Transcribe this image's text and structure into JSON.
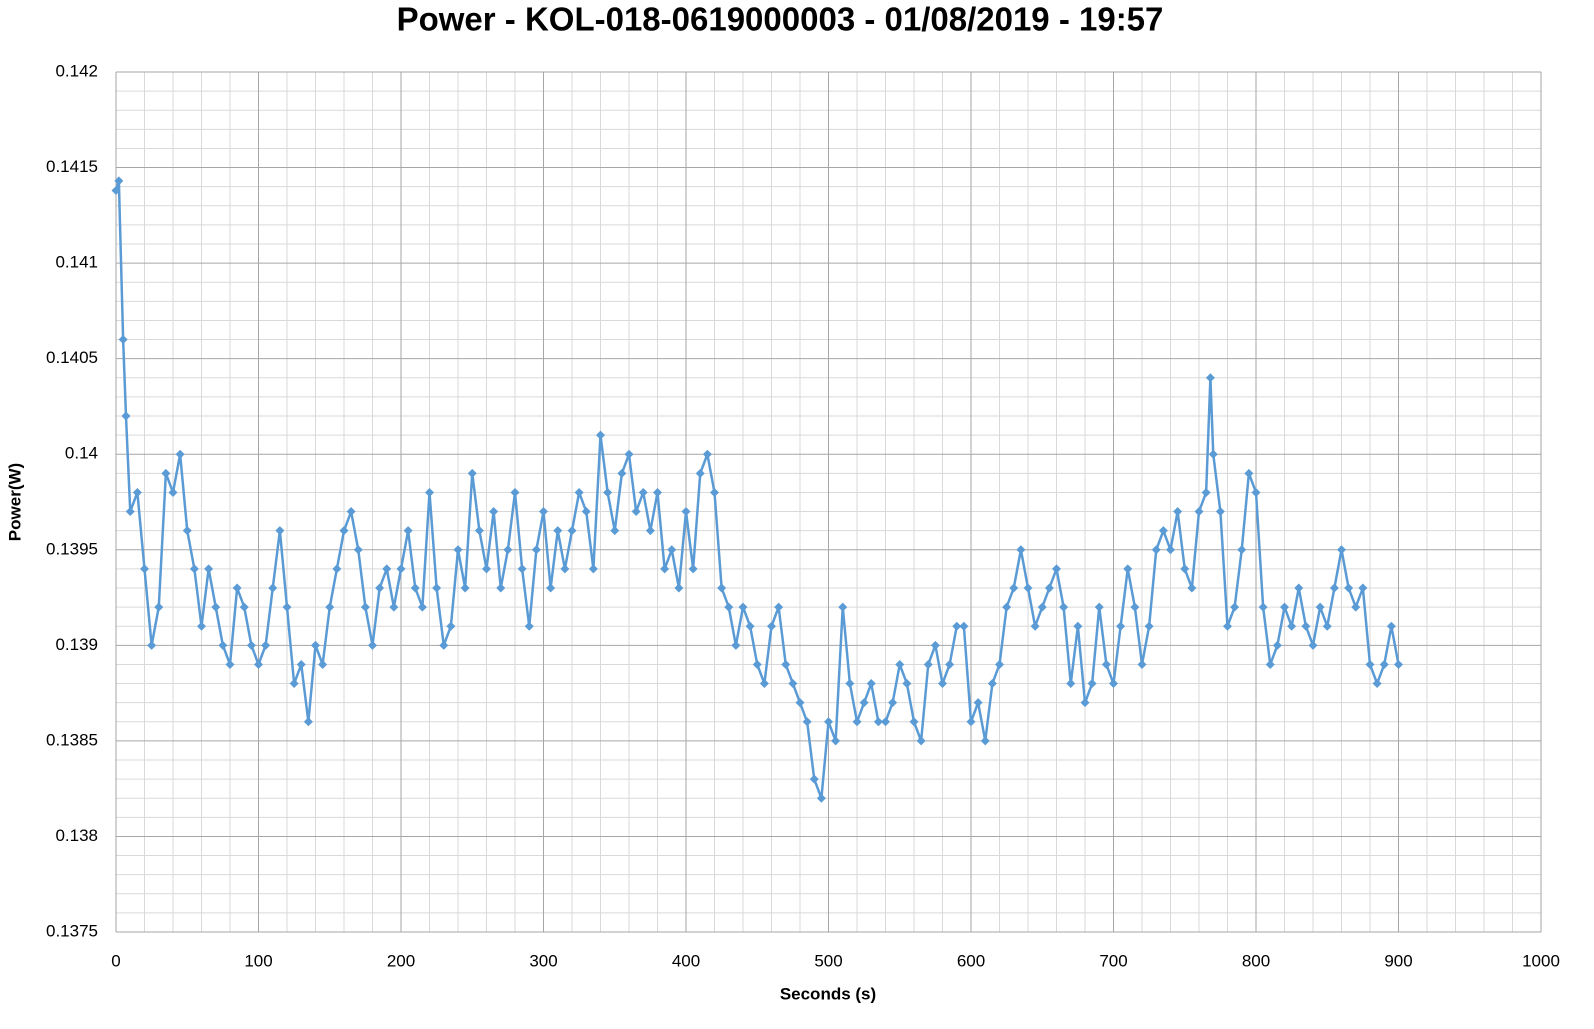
{
  "chart_data": {
    "type": "line",
    "title": "Power - KOL-018-0619000003 - 01/08/2019 - 19:57",
    "x_label": "Seconds (s)",
    "y_label": "Power(W)",
    "xlim": [
      0,
      1000
    ],
    "ylim": [
      0.1375,
      0.142
    ],
    "xticks": [
      0,
      100,
      200,
      300,
      400,
      500,
      600,
      700,
      800,
      900,
      1000
    ],
    "yticks": [
      0.1375,
      0.138,
      0.1385,
      0.139,
      0.1395,
      0.14,
      0.1405,
      0.141,
      0.1415,
      0.142
    ],
    "grid": true,
    "minor_grid": true,
    "marker": "diamond",
    "x": [
      0,
      2,
      5,
      7,
      10,
      15,
      20,
      25,
      30,
      35,
      40,
      45,
      50,
      55,
      60,
      65,
      70,
      75,
      80,
      85,
      90,
      95,
      100,
      105,
      110,
      115,
      120,
      125,
      130,
      135,
      140,
      145,
      150,
      155,
      160,
      165,
      170,
      175,
      180,
      185,
      190,
      195,
      200,
      205,
      210,
      215,
      220,
      225,
      230,
      235,
      240,
      245,
      250,
      255,
      260,
      265,
      270,
      275,
      280,
      285,
      290,
      295,
      300,
      305,
      310,
      315,
      320,
      325,
      330,
      335,
      340,
      345,
      350,
      355,
      360,
      365,
      370,
      375,
      380,
      385,
      390,
      395,
      400,
      405,
      410,
      415,
      420,
      425,
      430,
      435,
      440,
      445,
      450,
      455,
      460,
      465,
      470,
      475,
      480,
      485,
      490,
      495,
      500,
      505,
      510,
      515,
      520,
      525,
      530,
      535,
      540,
      545,
      550,
      555,
      560,
      565,
      570,
      575,
      580,
      585,
      590,
      595,
      600,
      605,
      610,
      615,
      620,
      625,
      630,
      635,
      640,
      645,
      650,
      655,
      660,
      665,
      670,
      675,
      680,
      685,
      690,
      695,
      700,
      705,
      710,
      715,
      720,
      725,
      730,
      735,
      740,
      745,
      750,
      755,
      760,
      765,
      768,
      770,
      775,
      780,
      785,
      790,
      795,
      800,
      805,
      810,
      815,
      820,
      825,
      830,
      835,
      840,
      845,
      850,
      855,
      860,
      865,
      870,
      875,
      880,
      885,
      890,
      895,
      900
    ],
    "series": [
      {
        "name": "Power(W)",
        "color": "#5b9bd5",
        "values": [
          0.14138,
          0.14143,
          0.1406,
          0.1402,
          0.1397,
          0.1398,
          0.1394,
          0.139,
          0.1392,
          0.1399,
          0.1398,
          0.14,
          0.1396,
          0.1394,
          0.1391,
          0.1394,
          0.1392,
          0.139,
          0.1389,
          0.1393,
          0.1392,
          0.139,
          0.1389,
          0.139,
          0.1393,
          0.1396,
          0.1392,
          0.1388,
          0.1389,
          0.1386,
          0.139,
          0.1389,
          0.1392,
          0.1394,
          0.1396,
          0.1397,
          0.1395,
          0.1392,
          0.139,
          0.1393,
          0.1394,
          0.1392,
          0.1394,
          0.1396,
          0.1393,
          0.1392,
          0.1398,
          0.1393,
          0.139,
          0.1391,
          0.1395,
          0.1393,
          0.1399,
          0.1396,
          0.1394,
          0.1397,
          0.1393,
          0.1395,
          0.1398,
          0.1394,
          0.1391,
          0.1395,
          0.1397,
          0.1393,
          0.1396,
          0.1394,
          0.1396,
          0.1398,
          0.1397,
          0.1394,
          0.1401,
          0.1398,
          0.1396,
          0.1399,
          0.14,
          0.1397,
          0.1398,
          0.1396,
          0.1398,
          0.1394,
          0.1395,
          0.1393,
          0.1397,
          0.1394,
          0.1399,
          0.14,
          0.1398,
          0.1393,
          0.1392,
          0.139,
          0.1392,
          0.1391,
          0.1389,
          0.1388,
          0.1391,
          0.1392,
          0.1389,
          0.1388,
          0.1387,
          0.1386,
          0.1383,
          0.1382,
          0.1386,
          0.1385,
          0.1392,
          0.1388,
          0.1386,
          0.1387,
          0.1388,
          0.1386,
          0.1386,
          0.1387,
          0.1389,
          0.1388,
          0.1386,
          0.1385,
          0.1389,
          0.139,
          0.1388,
          0.1389,
          0.1391,
          0.1391,
          0.1386,
          0.1387,
          0.1385,
          0.1388,
          0.1389,
          0.1392,
          0.1393,
          0.1395,
          0.1393,
          0.1391,
          0.1392,
          0.1393,
          0.1394,
          0.1392,
          0.1388,
          0.1391,
          0.1387,
          0.1388,
          0.1392,
          0.1389,
          0.1388,
          0.1391,
          0.1394,
          0.1392,
          0.1389,
          0.1391,
          0.1395,
          0.1396,
          0.1395,
          0.1397,
          0.1394,
          0.1393,
          0.1397,
          0.1398,
          0.1404,
          0.14,
          0.1397,
          0.1391,
          0.1392,
          0.1395,
          0.1399,
          0.1398,
          0.1392,
          0.1389,
          0.139,
          0.1392,
          0.1391,
          0.1393,
          0.1391,
          0.139,
          0.1392,
          0.1391,
          0.1393,
          0.1395,
          0.1393,
          0.1392,
          0.1393,
          0.1389,
          0.1388,
          0.1389,
          0.1391,
          0.1389
        ]
      }
    ]
  }
}
